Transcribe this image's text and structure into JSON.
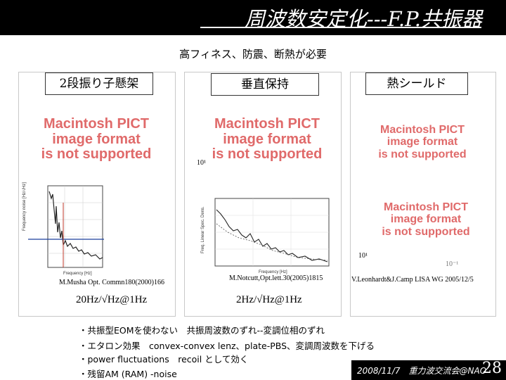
{
  "header": {
    "title": "周波数安定化---F.P.共振器"
  },
  "subtitle": "高フィネス、防震、断熱が必要",
  "panels": {
    "left": {
      "heading": "2段振り子懸架",
      "citation": "M.Musha Opt. Commn180(2000)166",
      "spec": "20Hz/√Hz@1Hz"
    },
    "middle": {
      "heading": "垂直保持",
      "citation": "M.Notcutt,Opt.lett.30(2005)1815",
      "spec": "2Hz/√Hz@1Hz"
    },
    "right": {
      "heading": "熱シールド",
      "citation": "V.Leonhardt&J.Camp LISA WG 2005/12/5"
    }
  },
  "placeholder_lines": [
    "Macintosh PICT",
    "image format",
    "is not supported"
  ],
  "small_labels": {
    "tick_a": "10¹",
    "tick_b": "10¹",
    "tick_c": "10⁻¹"
  },
  "bullets": [
    "・共振型EOMを使わない　共振周波数のずれ--変調位相のずれ",
    "・エタロン効果　convex-convex lenz、plate-PBS、変調周波数を下げる",
    "・power fluctuations　recoil として効く",
    "・残留AM (RAM) -noise"
  ],
  "footer": {
    "date_event": "2008/11/7　重力波交流会@NAO",
    "page_number": "28"
  }
}
